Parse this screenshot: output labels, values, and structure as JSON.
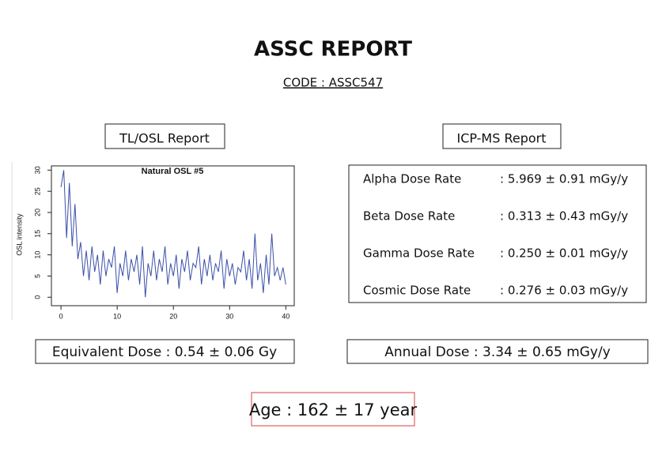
{
  "header": {
    "title": "ASSC REPORT",
    "code": "CODE : ASSC547"
  },
  "tl_osl": {
    "heading": "TL/OSL Report",
    "equivalent_dose": "Equivalent Dose : 0.54 ± 0.06 Gy"
  },
  "icp_ms": {
    "heading": "ICP-MS Report",
    "rows": [
      [
        "Alpha Dose Rate",
        ": 5.969 ± 0.91 mGy/y"
      ],
      [
        "Beta Dose Rate",
        ": 0.313 ± 0.43 mGy/y"
      ],
      [
        "Gamma Dose Rate",
        ": 0.250 ± 0.01 mGy/y"
      ],
      [
        "Cosmic Dose Rate",
        ": 0.276 ± 0.03 mGy/y"
      ]
    ],
    "annual_dose": "Annual Dose : 3.34 ± 0.65 mGy/y"
  },
  "age": "Age : 162 ± 17 year",
  "chart_data": {
    "type": "line",
    "title": "Natural OSL #5",
    "y_label": "OSL intensity",
    "color": "#3a4fa8",
    "x": [
      0,
      0.5,
      1,
      1.5,
      2,
      2.5,
      3,
      3.5,
      4,
      4.5,
      5,
      5.5,
      6,
      6.5,
      7,
      7.5,
      8,
      8.5,
      9,
      9.5,
      10,
      10.5,
      11,
      11.5,
      12,
      12.5,
      13,
      13.5,
      14,
      14.5,
      15,
      15.5,
      16,
      16.5,
      17,
      17.5,
      18,
      18.5,
      19,
      19.5,
      20,
      20.5,
      21,
      21.5,
      22,
      22.5,
      23,
      23.5,
      24,
      24.5,
      25,
      25.5,
      26,
      26.5,
      27,
      27.5,
      28,
      28.5,
      29,
      29.5,
      30,
      30.5,
      31,
      31.5,
      32,
      32.5,
      33,
      33.5,
      34,
      34.5,
      35,
      35.5,
      36,
      36.5,
      37,
      37.5,
      38,
      38.5,
      39,
      39.5,
      40
    ],
    "values": [
      26,
      30,
      14,
      27,
      12,
      22,
      9,
      13,
      5,
      11,
      4,
      12,
      6,
      10,
      3,
      11,
      5,
      9,
      7,
      12,
      1,
      8,
      5,
      11,
      4,
      9,
      6,
      10,
      3,
      12,
      0,
      8,
      5,
      11,
      4,
      9,
      6,
      12,
      3,
      8,
      5,
      10,
      2,
      9,
      6,
      11,
      4,
      8,
      7,
      12,
      3,
      9,
      5,
      10,
      4,
      8,
      6,
      11,
      2,
      9,
      5,
      8,
      3,
      7,
      6,
      11,
      4,
      9,
      2,
      15,
      4,
      8,
      1,
      10,
      3,
      15,
      5,
      7,
      4,
      7,
      3
    ],
    "xlim": [
      -1.7,
      41.5
    ],
    "ylim": [
      -2,
      31
    ],
    "xticks": [
      0,
      10,
      20,
      30,
      40
    ],
    "yticks": [
      0,
      5,
      10,
      15,
      20,
      25,
      30
    ]
  }
}
